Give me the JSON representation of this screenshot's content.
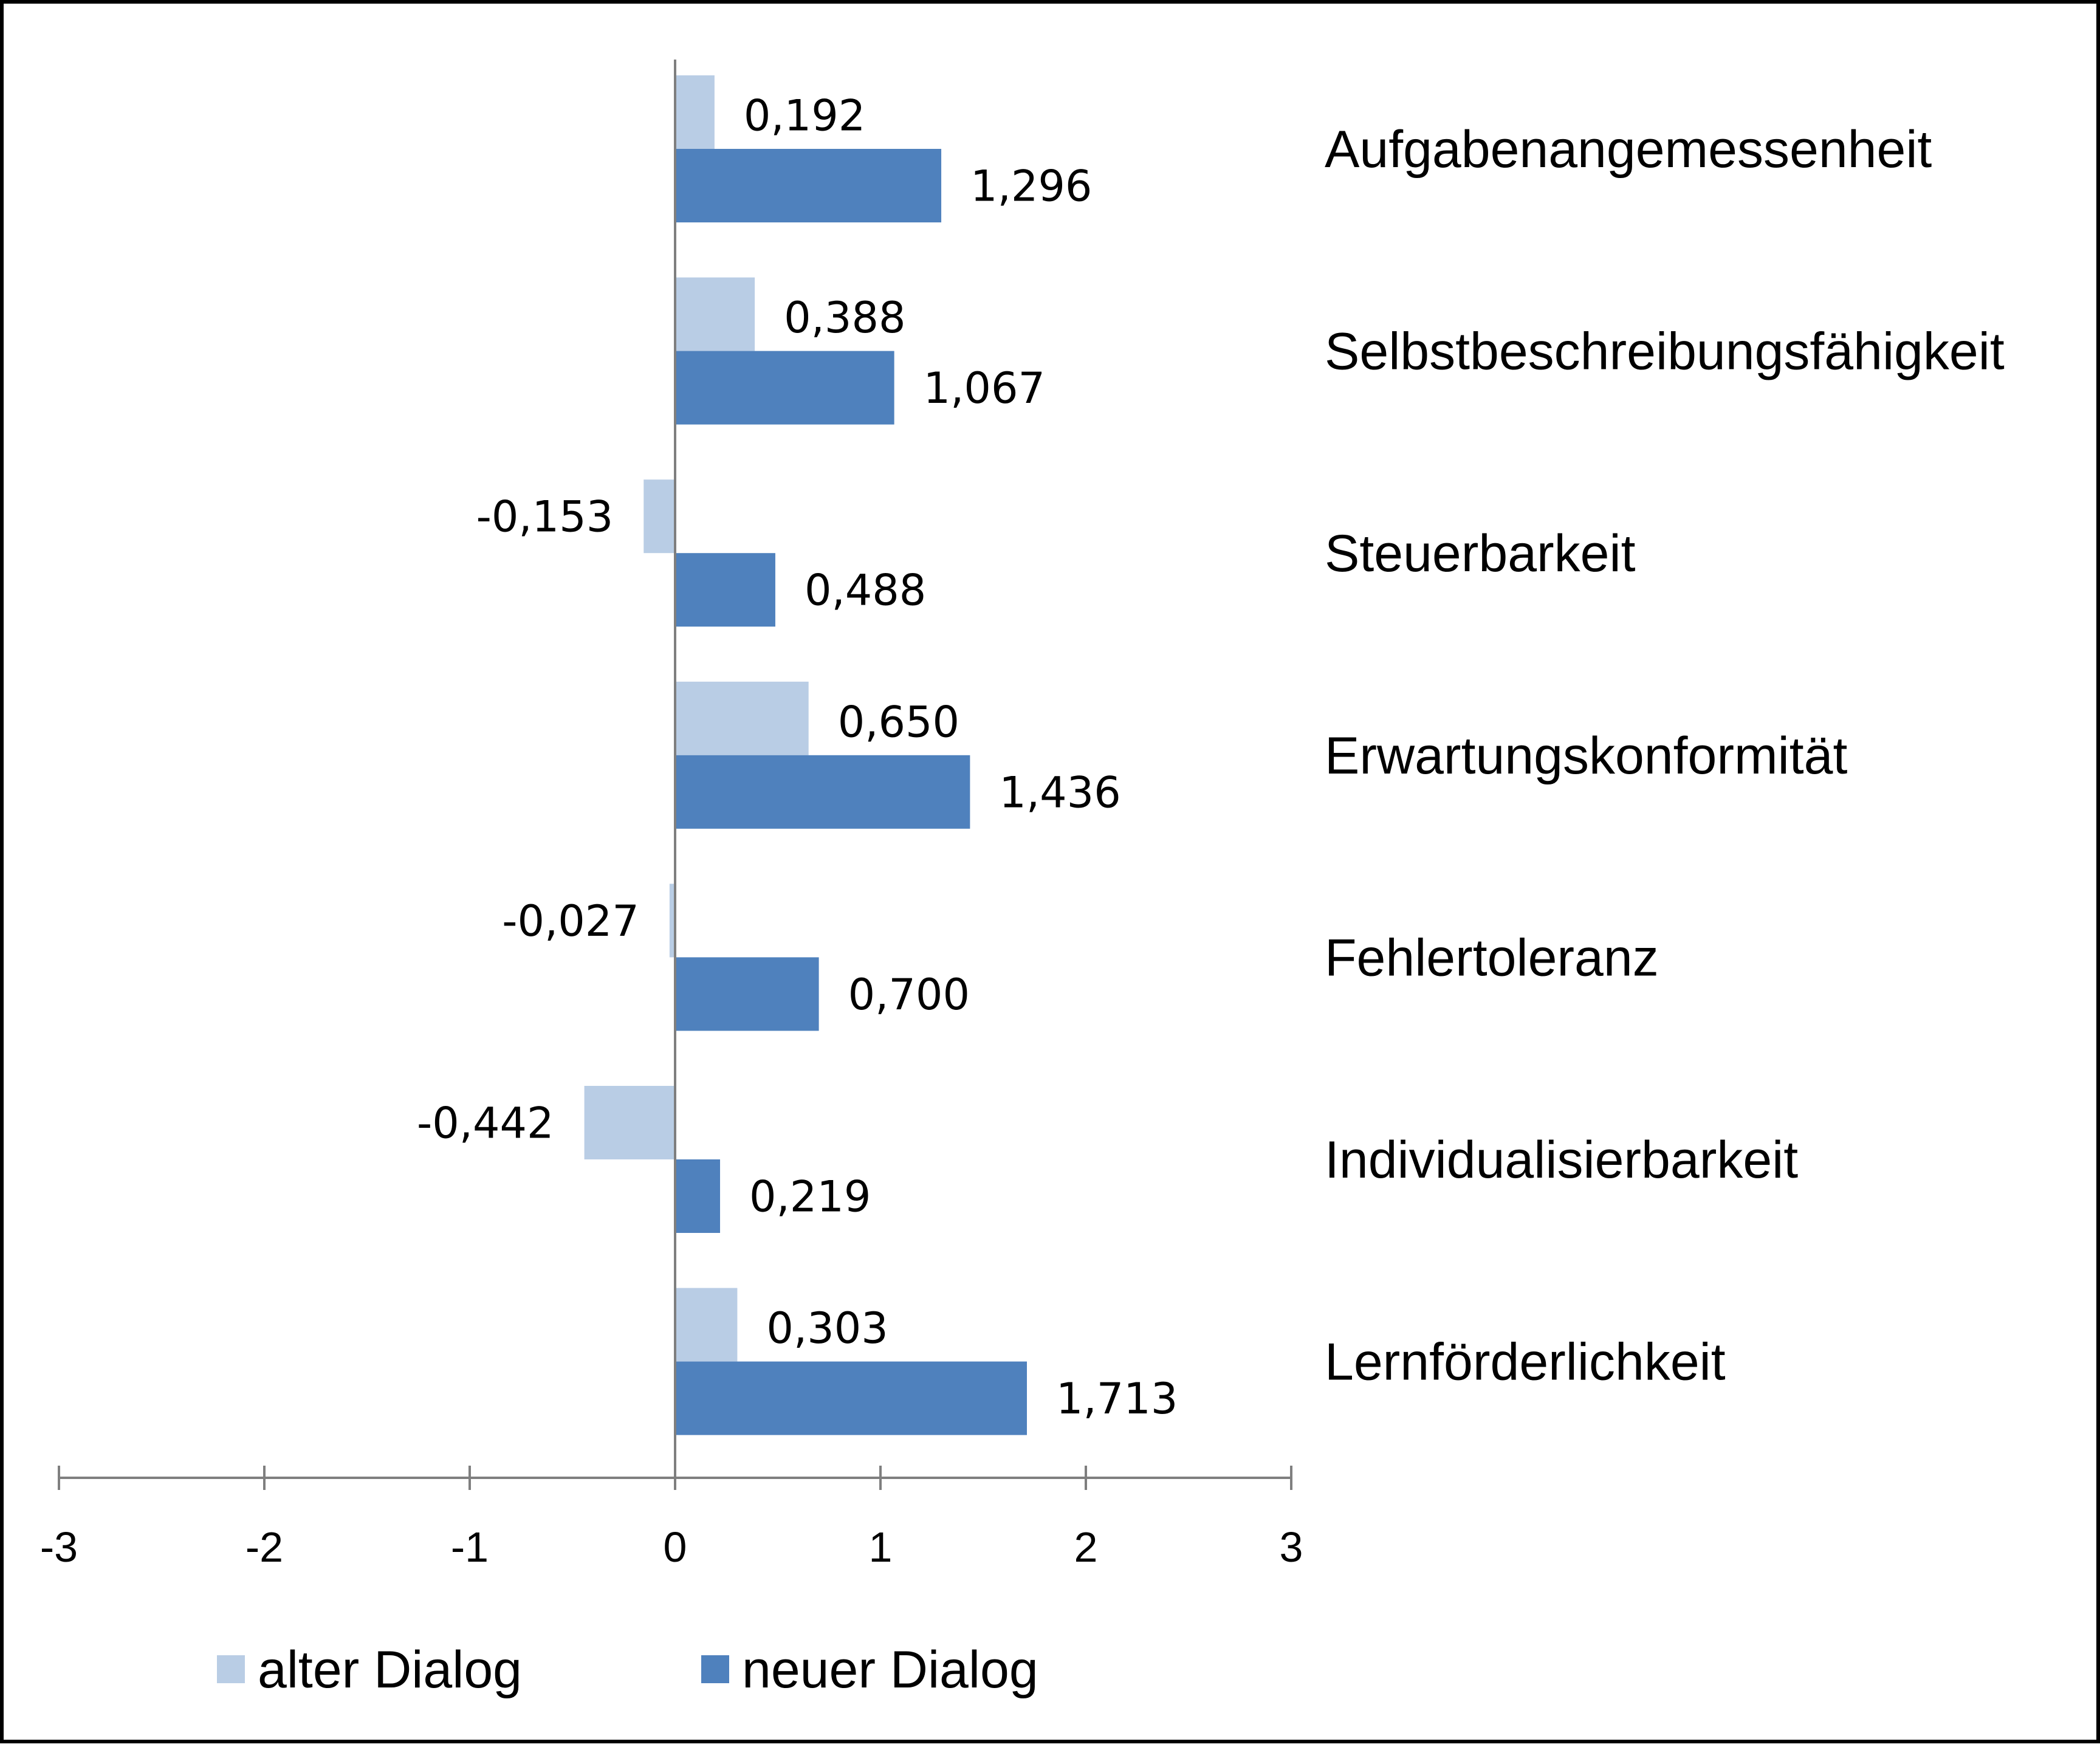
{
  "chart_data": {
    "type": "bar",
    "orientation": "horizontal",
    "categories": [
      "Aufgabenangemessenheit",
      "Selbstbeschreibungsfähigkeit",
      "Steuerbarkeit",
      "Erwartungskonformität",
      "Fehlertoleranz",
      "Individualisierbarkeit",
      "Lernförderlichkeit"
    ],
    "series": [
      {
        "name": "alter Dialog",
        "color": "#B9CDE5",
        "values": [
          0.192,
          0.388,
          -0.153,
          0.65,
          -0.027,
          -0.442,
          0.303
        ],
        "labels": [
          "0,192",
          "0,388",
          "-0,153",
          "0,650",
          "-0,027",
          "-0,442",
          "0,303"
        ]
      },
      {
        "name": "neuer Dialog",
        "color": "#4F81BD",
        "values": [
          1.296,
          1.067,
          0.488,
          1.436,
          0.7,
          0.219,
          1.713
        ],
        "labels": [
          "1,296",
          "1,067",
          "0,488",
          "1,436",
          "0,700",
          "0,219",
          "1,713"
        ]
      }
    ],
    "xlim": [
      -3,
      3
    ],
    "xticks": [
      -3,
      -2,
      -1,
      0,
      1,
      2,
      3
    ],
    "xtick_labels": [
      "-3",
      "-2",
      "-1",
      "0",
      "1",
      "2",
      "3"
    ],
    "grid": false,
    "legend_position": "bottom",
    "axis_color": "#7F7F7F"
  }
}
